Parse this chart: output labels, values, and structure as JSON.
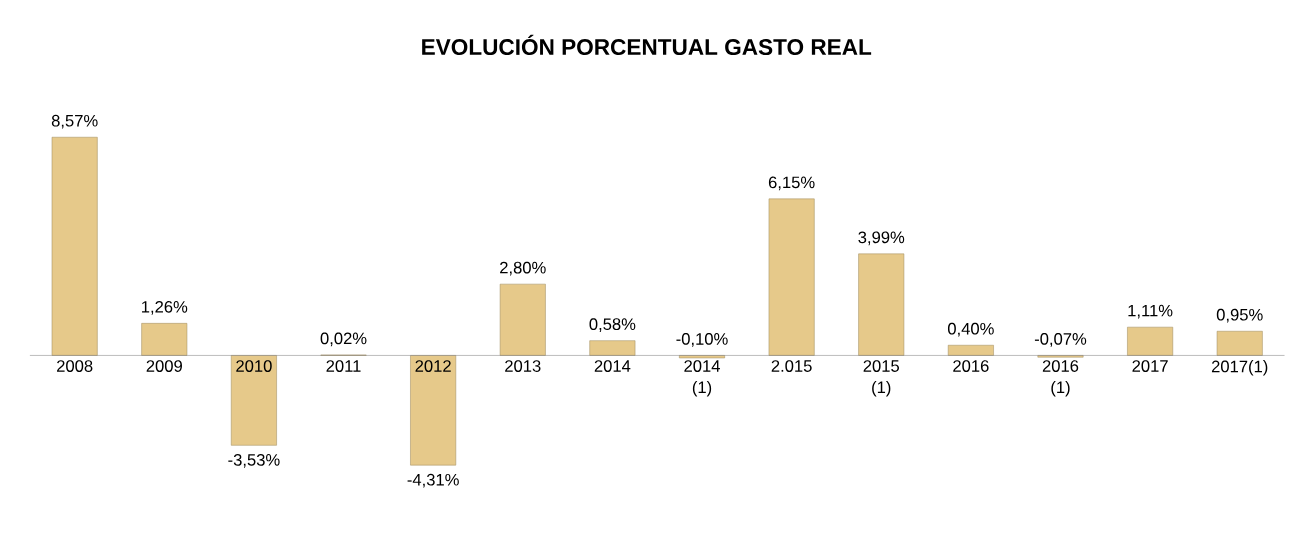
{
  "chart_data": {
    "type": "bar",
    "title": "EVOLUCIÓN PORCENTUAL GASTO REAL",
    "categories": [
      "2008",
      "2009",
      "2010",
      "2011",
      "2012",
      "2013",
      "2014",
      "2014 (1)",
      "2.015",
      "2015 (1)",
      "2016",
      "2016 (1)",
      "2017",
      "2017(1)"
    ],
    "values": [
      8.57,
      1.26,
      -3.53,
      0.02,
      -4.31,
      2.8,
      0.58,
      -0.1,
      6.15,
      3.99,
      0.4,
      -0.07,
      1.11,
      0.95
    ],
    "value_labels": [
      "8,57%",
      "1,26%",
      "-3,53%",
      "0,02%",
      "-4,31%",
      "2,80%",
      "0,58%",
      "-0,10%",
      "6,15%",
      "3,99%",
      "0,40%",
      "-0,07%",
      "1,11%",
      "0,95%"
    ],
    "color": "#e6c98a"
  }
}
